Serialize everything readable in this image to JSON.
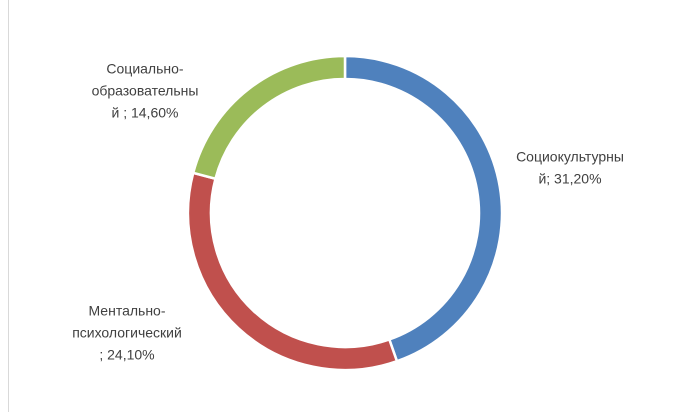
{
  "chart_data": {
    "type": "donut",
    "values": [
      31.2,
      24.1,
      14.6
    ],
    "value_labels": [
      [
        "Социокультурны",
        "й; 31,20%"
      ],
      [
        "Ментально-",
        "психологический",
        "; 24,10%"
      ],
      [
        "Социально-",
        "образовательны",
        "й ; 14,60%"
      ]
    ],
    "colors": [
      "#4f81bd",
      "#c0504d",
      "#9bbb59"
    ]
  }
}
